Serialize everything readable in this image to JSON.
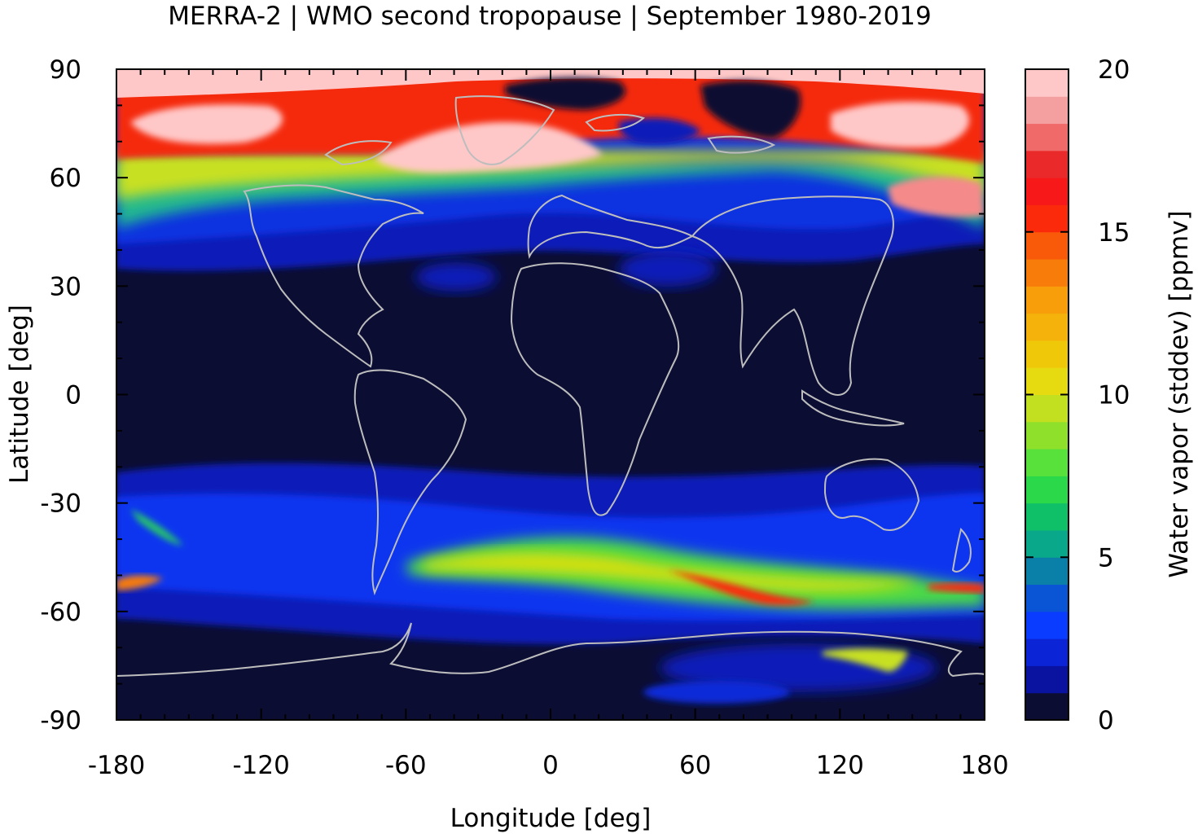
{
  "title": "MERRA-2 | WMO second tropopause | September 1980-2019",
  "xaxis": {
    "label": "Longitude [deg]",
    "range": [
      -180,
      180
    ],
    "ticks": [
      "-180",
      "-120",
      "-60",
      "0",
      "60",
      "120",
      "180"
    ],
    "tick_values": [
      -180,
      -120,
      -60,
      0,
      60,
      120,
      180
    ]
  },
  "yaxis": {
    "label": "Latitude [deg]",
    "range": [
      -90,
      90
    ],
    "ticks": [
      "90",
      "60",
      "30",
      "0",
      "-30",
      "-60",
      "-90"
    ],
    "tick_values": [
      90,
      60,
      30,
      0,
      -30,
      -60,
      -90
    ]
  },
  "colorbar": {
    "label": "Water vapor (stddev) [ppmv]",
    "range": [
      0,
      20
    ],
    "ticks": [
      "20",
      "15",
      "10",
      "5",
      "0"
    ],
    "tick_values": [
      20,
      15,
      10,
      5,
      0
    ],
    "colors": [
      "#0b0d33",
      "#0a12a0",
      "#0a24d6",
      "#0a3cff",
      "#0a55d6",
      "#0a7fa8",
      "#0aa88a",
      "#10c068",
      "#2ad84a",
      "#58e13a",
      "#8fe02b",
      "#c2e01f",
      "#e6db10",
      "#f0c80a",
      "#f4b20a",
      "#f79e0a",
      "#f87c0a",
      "#f95a0a",
      "#fb2a0a",
      "#f7181a",
      "#ea2a2a",
      "#f06a6a",
      "#f4a0a0",
      "#ffc8c8"
    ]
  },
  "chart_data": {
    "type": "heatmap",
    "title": "MERRA-2 | WMO second tropopause | September 1980-2019",
    "xlabel": "Longitude [deg]",
    "ylabel": "Latitude [deg]",
    "xlim": [
      -180,
      180
    ],
    "ylim": [
      -90,
      90
    ],
    "colorbar_label": "Water vapor (stddev) [ppmv]",
    "zlim": [
      0,
      20
    ],
    "grid": true
  },
  "colors": {
    "background_field": "#0b0d33",
    "coastline": "#bdbdbd"
  }
}
